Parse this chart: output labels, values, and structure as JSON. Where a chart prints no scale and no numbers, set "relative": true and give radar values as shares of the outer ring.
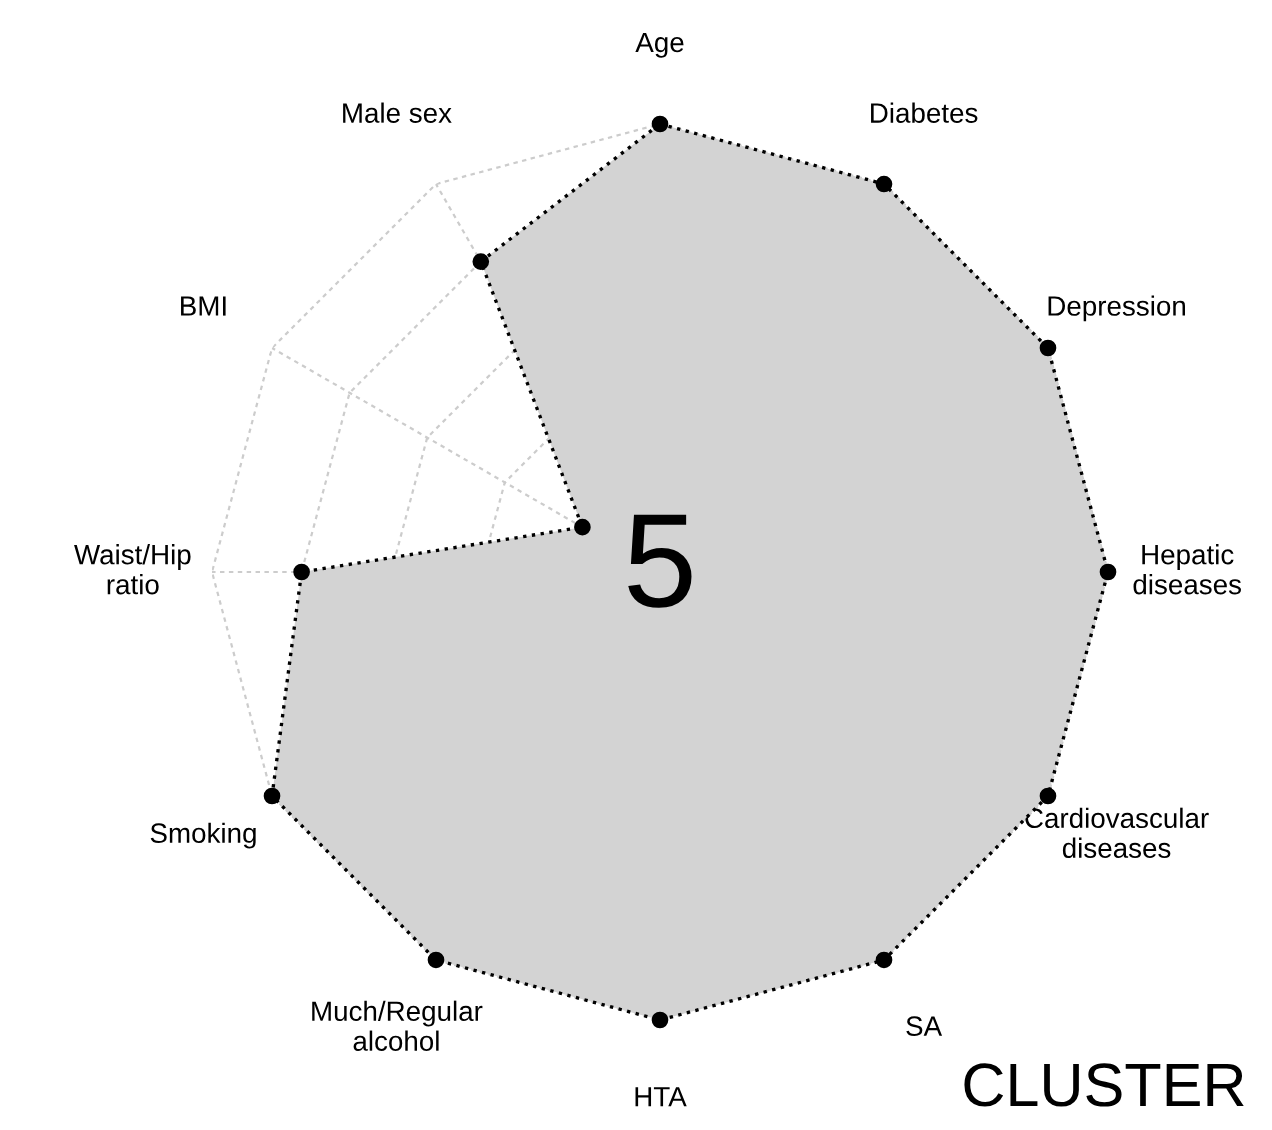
{
  "chart_data": {
    "type": "radar",
    "title": "5",
    "relative": true,
    "grid": true,
    "marker": "circle",
    "line_style": "dotted",
    "legend": false,
    "categories": [
      "Age",
      "Diabetes",
      "Depression",
      "Hepatic\ndiseases",
      "Cardiovascular\ndiseases",
      "SA",
      "HTA",
      "Much/Regular\nalcohol",
      "Smoking",
      "Waist/Hip\nratio",
      "BMI",
      "Male sex"
    ],
    "series": [
      {
        "color": "#d3d3d3",
        "values": [
          1,
          1,
          1,
          1,
          1,
          1,
          1,
          1,
          1,
          0.8,
          0.2,
          0.8
        ]
      }
    ],
    "annotations": [
      "CLUSTER"
    ]
  }
}
